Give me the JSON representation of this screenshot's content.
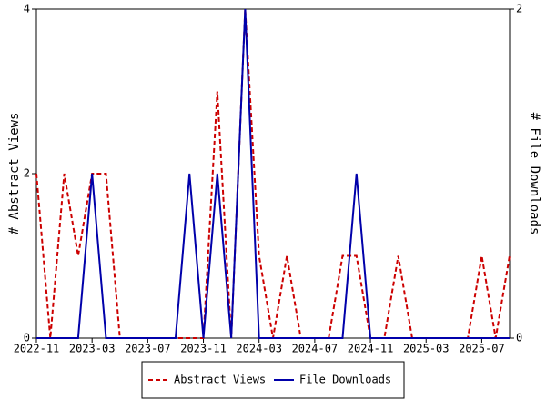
{
  "chart_data": {
    "type": "line",
    "categories": [
      "2022-11",
      null,
      null,
      null,
      "2023-03",
      null,
      null,
      null,
      "2023-07",
      null,
      null,
      null,
      "2023-11",
      null,
      null,
      null,
      "2024-03",
      null,
      null,
      null,
      "2024-07",
      null,
      null,
      null,
      "2024-11",
      null,
      null,
      null,
      "2025-03",
      null,
      null,
      null,
      "2025-07",
      null,
      null
    ],
    "series": [
      {
        "name": "Abstract Views",
        "color": "#cc0000",
        "dash": true,
        "values": [
          2,
          0,
          2,
          1,
          2,
          2,
          0,
          0,
          0,
          0,
          0,
          0,
          0,
          3,
          0,
          4,
          1,
          0,
          1,
          0,
          0,
          0,
          1,
          1,
          0,
          0,
          1,
          0,
          0,
          0,
          0,
          0,
          1,
          0,
          1
        ]
      },
      {
        "name": "File Downloads",
        "color": "#0000aa",
        "dash": false,
        "axis": "y2",
        "values": [
          0,
          0,
          0,
          0,
          1,
          0,
          0,
          0,
          0,
          0,
          0,
          1,
          0,
          1,
          0,
          2,
          0,
          0,
          0,
          0,
          0,
          0,
          0,
          1,
          0,
          0,
          0,
          0,
          0,
          0,
          0,
          0,
          0,
          0,
          0
        ]
      }
    ],
    "ylabel": "# Abstract Views",
    "y2label": "# File Downloads",
    "ylim": [
      0,
      4
    ],
    "yticks": [
      0,
      2,
      4
    ],
    "y2lim": [
      0,
      2
    ],
    "y2ticks": [
      0,
      2
    ],
    "legend": "bottom"
  }
}
